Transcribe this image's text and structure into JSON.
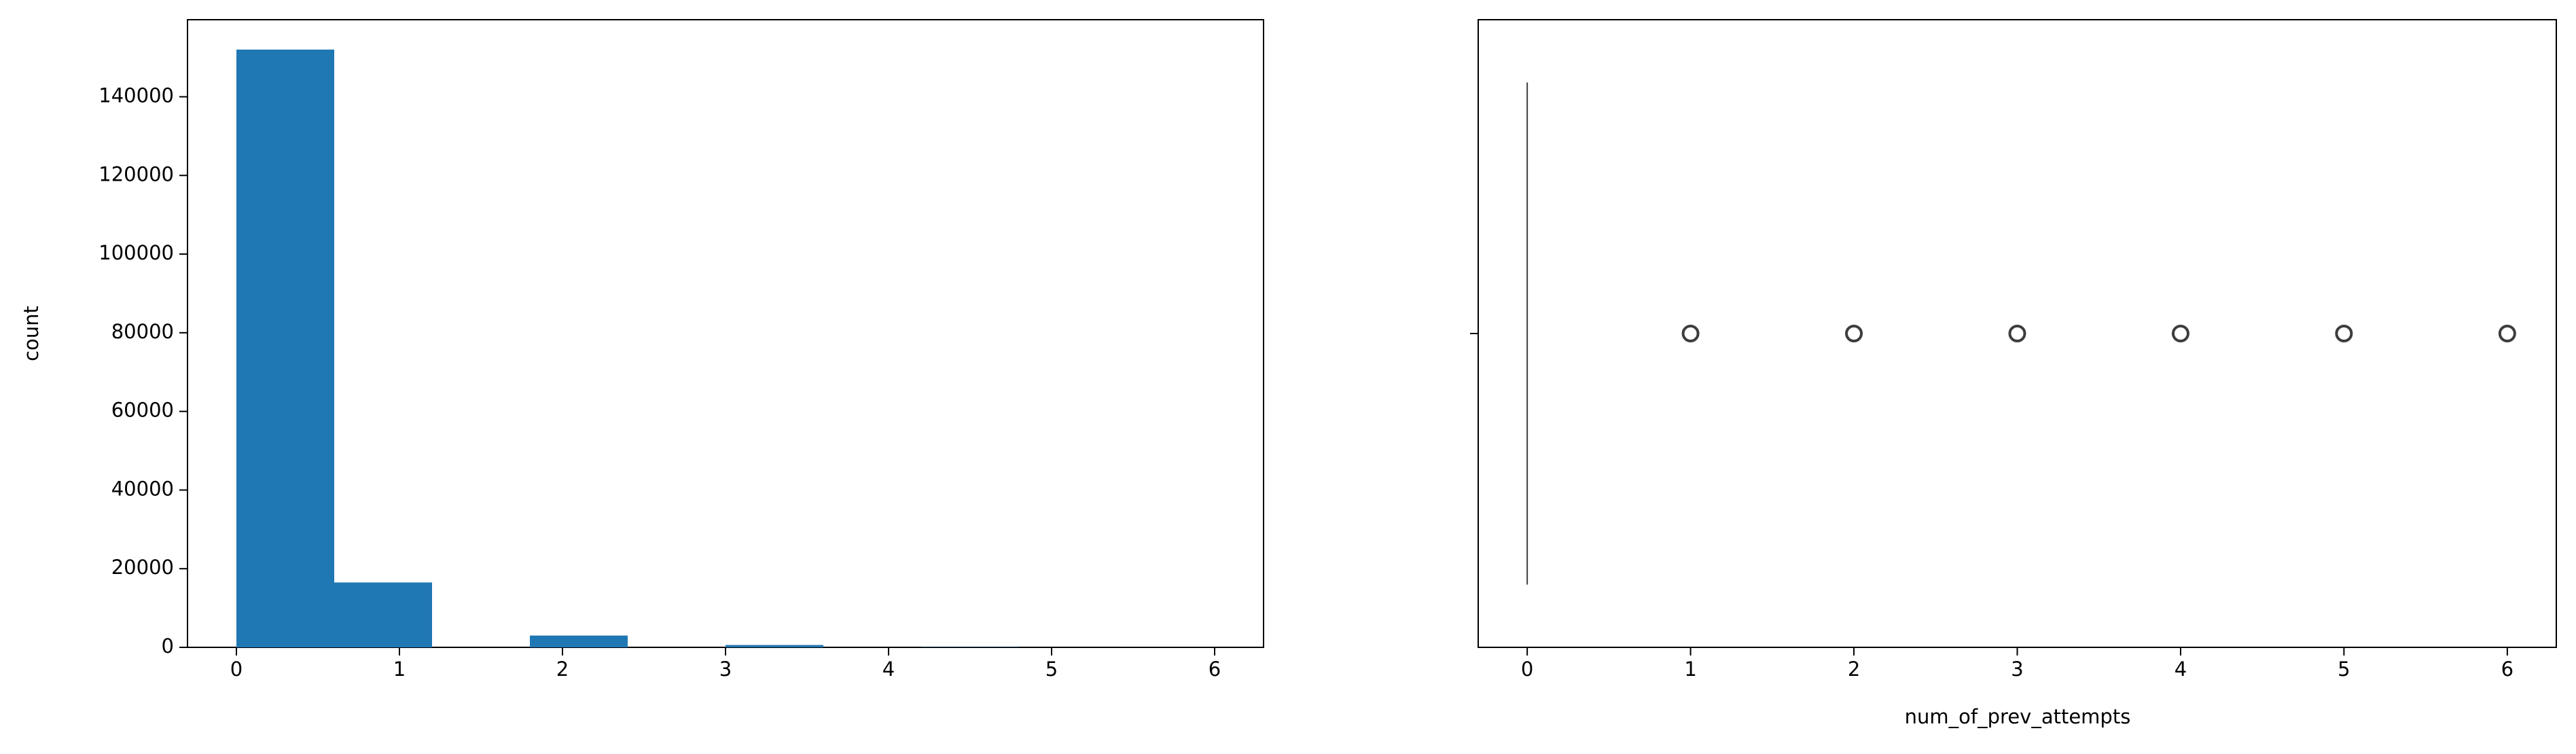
{
  "chart_data": [
    {
      "type": "histogram",
      "ylabel": "count",
      "bins": [
        0,
        0.6,
        1.2,
        1.8,
        2.4,
        3.0,
        3.6,
        4.2,
        4.8,
        5.4,
        6.0
      ],
      "counts": [
        152000,
        16500,
        0,
        3000,
        0,
        600,
        0,
        60,
        0,
        20
      ],
      "color": "#1f77b4",
      "xlim": [
        -0.3,
        6.3
      ],
      "xticks": [
        0,
        1,
        2,
        3,
        4,
        5,
        6
      ],
      "ylim": [
        0,
        159600
      ],
      "yticks": [
        0,
        20000,
        40000,
        60000,
        80000,
        100000,
        120000,
        140000
      ]
    },
    {
      "type": "box",
      "xlabel": "num_of_prev_attempts",
      "whisker_low": 0,
      "q1": 0,
      "median": 0,
      "q3": 0,
      "whisker_high": 0,
      "outliers": [
        1,
        2,
        3,
        4,
        5,
        6
      ],
      "color": "#3d3d3d",
      "xlim": [
        -0.3,
        6.3
      ],
      "xticks": [
        0,
        1,
        2,
        3,
        4,
        5,
        6
      ]
    }
  ]
}
